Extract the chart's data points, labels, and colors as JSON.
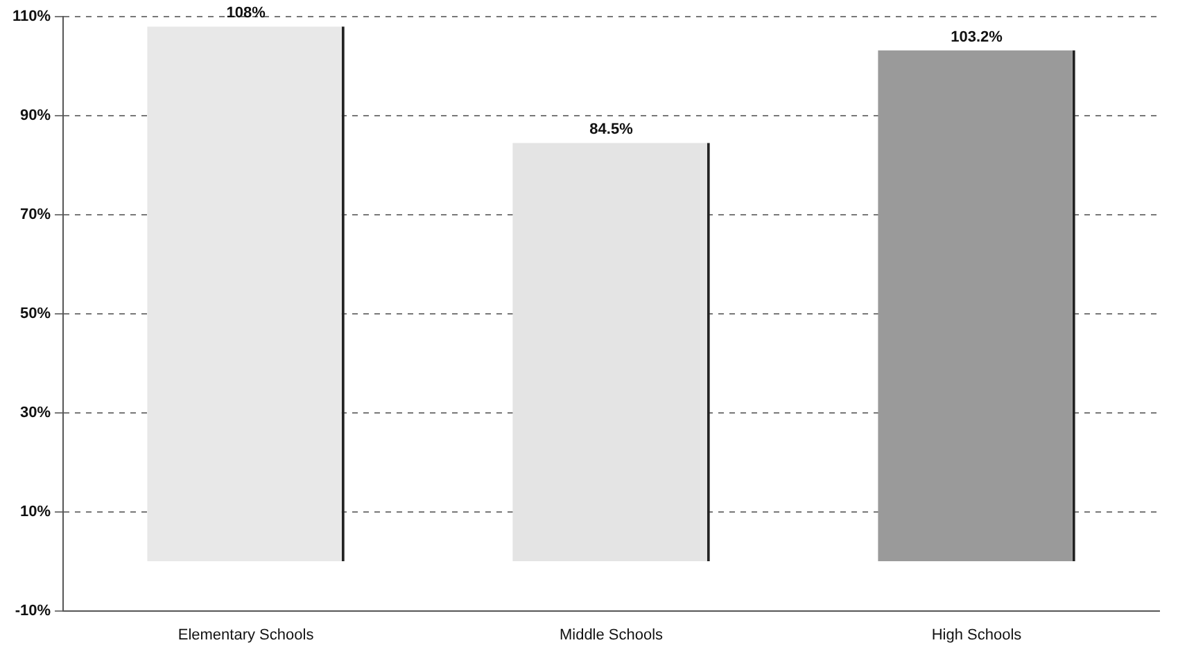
{
  "chart_data": {
    "type": "bar",
    "categories": [
      "Elementary Schools",
      "Middle Schools",
      "High Schools"
    ],
    "values": [
      108,
      84.5,
      103.2
    ],
    "colors": [
      "#e8e8e8",
      "#e4e4e4",
      "#9a9a9a"
    ],
    "value_labels": [
      "108%",
      "84.5%",
      "103.2%"
    ],
    "ylim": [
      -10,
      110
    ],
    "yticks": [
      {
        "value": -10,
        "label": "-10%"
      },
      {
        "value": 10,
        "label": "10%"
      },
      {
        "value": 30,
        "label": "30%"
      },
      {
        "value": 50,
        "label": "50%"
      },
      {
        "value": 70,
        "label": "70%"
      },
      {
        "value": 90,
        "label": "90%"
      },
      {
        "value": 110,
        "label": "110%"
      }
    ],
    "grid": "y"
  }
}
